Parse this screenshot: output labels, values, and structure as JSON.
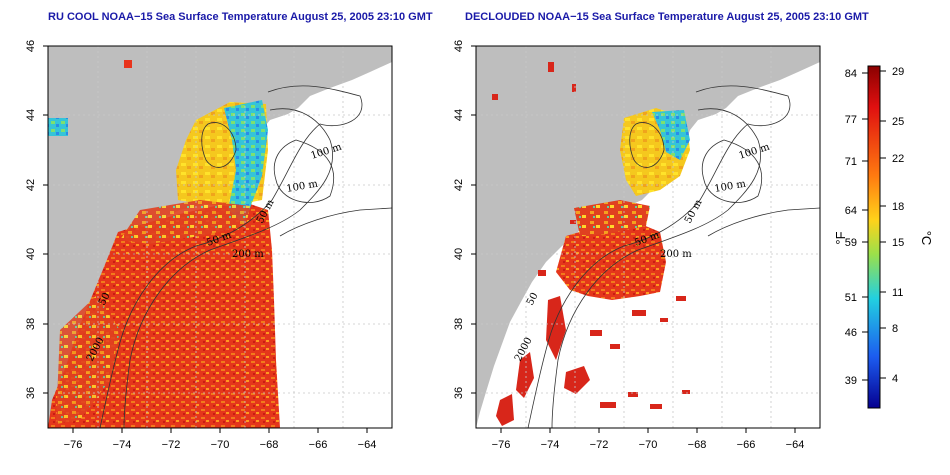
{
  "panels": [
    {
      "title": "RU COOL NOAA−15 Sea Surface Temperature August 25, 2005 23:10 GMT",
      "contour_labels": [
        "100 m",
        "100 m",
        "50 m",
        "50 m",
        "200 m",
        "2000",
        "50"
      ]
    },
    {
      "title": "DECLOUDED NOAA−15 Sea Surface Temperature August 25, 2005 23:10 GMT",
      "contour_labels": [
        "100 m",
        "100 m",
        "50 m",
        "50 m",
        "200 m",
        "2000",
        "50"
      ]
    }
  ],
  "map_axes": {
    "x_ticks": [
      "−76",
      "−74",
      "−72",
      "−70",
      "−68",
      "−66",
      "−64"
    ],
    "y_ticks": [
      "36",
      "38",
      "40",
      "42",
      "44",
      "46"
    ],
    "xlim": [
      -77,
      -63
    ],
    "ylim": [
      35,
      46
    ]
  },
  "colorbar": {
    "fahrenheit_ticks": [
      "84",
      "77",
      "71",
      "64",
      "59",
      "51",
      "46",
      "39"
    ],
    "celsius_ticks": [
      "29",
      "25",
      "22",
      "18",
      "15",
      "11",
      "8",
      "4"
    ],
    "fahrenheit_unit": "°F",
    "celsius_unit": "°C"
  },
  "colors": {
    "title": "#1a1aa8",
    "land": "#bebebe",
    "water_no_data": "#ffffff",
    "sst_warm": "#e8341c",
    "sst_mid": "#f5d21e",
    "sst_cool": "#33c6d6"
  }
}
